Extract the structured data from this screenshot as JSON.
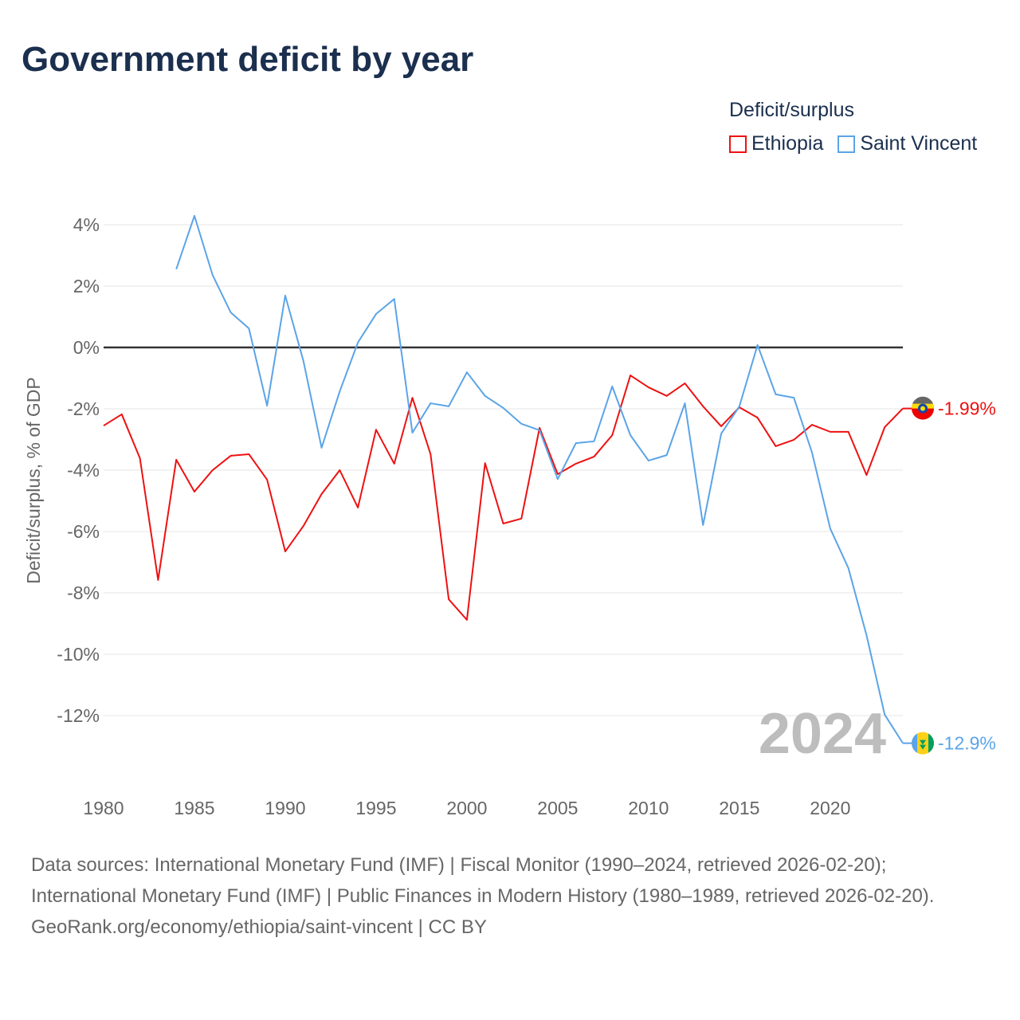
{
  "title": "Government deficit by year",
  "legend": {
    "title": "Deficit/surplus",
    "items": [
      {
        "label": "Ethiopia",
        "color": "#ee1111"
      },
      {
        "label": "Saint Vincent",
        "color": "#5ba4e8"
      }
    ]
  },
  "year_overlay": "2024",
  "source": {
    "line1": "Data sources: International Monetary Fund (IMF) | Fiscal Monitor (1990–2024, retrieved 2026-02-20); International Monetary Fund (IMF) | Public Finances in Modern History (1980–1989, retrieved 2026-02-20).",
    "line2": "GeoRank.org/economy/ethiopia/saint-vincent | CC BY"
  },
  "chart_data": {
    "type": "line",
    "title": "Government deficit by year",
    "xlabel": "",
    "ylabel": "Deficit/surplus, % of GDP",
    "xlim": [
      1980,
      2024
    ],
    "ylim": [
      -13.5,
      4.5
    ],
    "x_ticks": [
      1980,
      1985,
      1990,
      1995,
      2000,
      2005,
      2010,
      2015,
      2020
    ],
    "x_tick_labels": [
      "1980",
      "1985",
      "1990",
      "1995",
      "2000",
      "2005",
      "2010",
      "2015",
      "2020"
    ],
    "y_ticks": [
      4,
      2,
      0,
      -2,
      -4,
      -6,
      -8,
      -10,
      -12
    ],
    "y_tick_labels": [
      "4%",
      "2%",
      "0%",
      "-2%",
      "-4%",
      "-6%",
      "-8%",
      "-10%",
      "-12%"
    ],
    "grid": true,
    "legend_position": "top-right",
    "series": [
      {
        "name": "Ethiopia",
        "color": "#ee1111",
        "end_label": "-1.99%",
        "x": [
          1980,
          1981,
          1982,
          1983,
          1984,
          1985,
          1986,
          1987,
          1988,
          1989,
          1990,
          1991,
          1992,
          1993,
          1994,
          1995,
          1996,
          1997,
          1998,
          1999,
          2000,
          2001,
          2002,
          2003,
          2004,
          2005,
          2006,
          2007,
          2008,
          2009,
          2010,
          2011,
          2012,
          2013,
          2014,
          2015,
          2016,
          2017,
          2018,
          2019,
          2020,
          2021,
          2022,
          2023,
          2024
        ],
        "values": [
          -2.55,
          -2.18,
          -3.61,
          -7.58,
          -3.66,
          -4.7,
          -4.0,
          -3.53,
          -3.48,
          -4.31,
          -6.65,
          -5.82,
          -4.78,
          -4.0,
          -5.22,
          -2.68,
          -3.79,
          -1.64,
          -3.48,
          -8.21,
          -8.88,
          -3.77,
          -5.74,
          -5.58,
          -2.62,
          -4.13,
          -3.79,
          -3.56,
          -2.86,
          -0.91,
          -1.3,
          -1.58,
          -1.17,
          -1.92,
          -2.57,
          -1.95,
          -2.29,
          -3.22,
          -3.01,
          -2.52,
          -2.75,
          -2.75,
          -4.16,
          -2.6,
          -1.99
        ]
      },
      {
        "name": "Saint Vincent",
        "color": "#5ba4e8",
        "end_label": "-12.9%",
        "x": [
          1984,
          1985,
          1986,
          1987,
          1988,
          1989,
          1990,
          1991,
          1992,
          1993,
          1994,
          1995,
          1996,
          1997,
          1998,
          1999,
          2000,
          2001,
          2002,
          2003,
          2004,
          2005,
          2006,
          2007,
          2008,
          2009,
          2010,
          2011,
          2012,
          2013,
          2014,
          2015,
          2016,
          2017,
          2018,
          2019,
          2020,
          2021,
          2022,
          2023,
          2024
        ],
        "values": [
          2.55,
          4.29,
          2.36,
          1.14,
          0.62,
          -1.9,
          1.69,
          -0.44,
          -3.27,
          -1.43,
          0.16,
          1.09,
          1.58,
          -2.78,
          -1.82,
          -1.92,
          -0.81,
          -1.58,
          -1.97,
          -2.49,
          -2.7,
          -4.29,
          -3.12,
          -3.06,
          -1.27,
          -2.86,
          -3.69,
          -3.51,
          -1.82,
          -5.79,
          -2.81,
          -1.92,
          0.08,
          -1.53,
          -1.64,
          -3.43,
          -5.9,
          -7.19,
          -9.38,
          -11.97,
          -12.9
        ]
      }
    ]
  }
}
